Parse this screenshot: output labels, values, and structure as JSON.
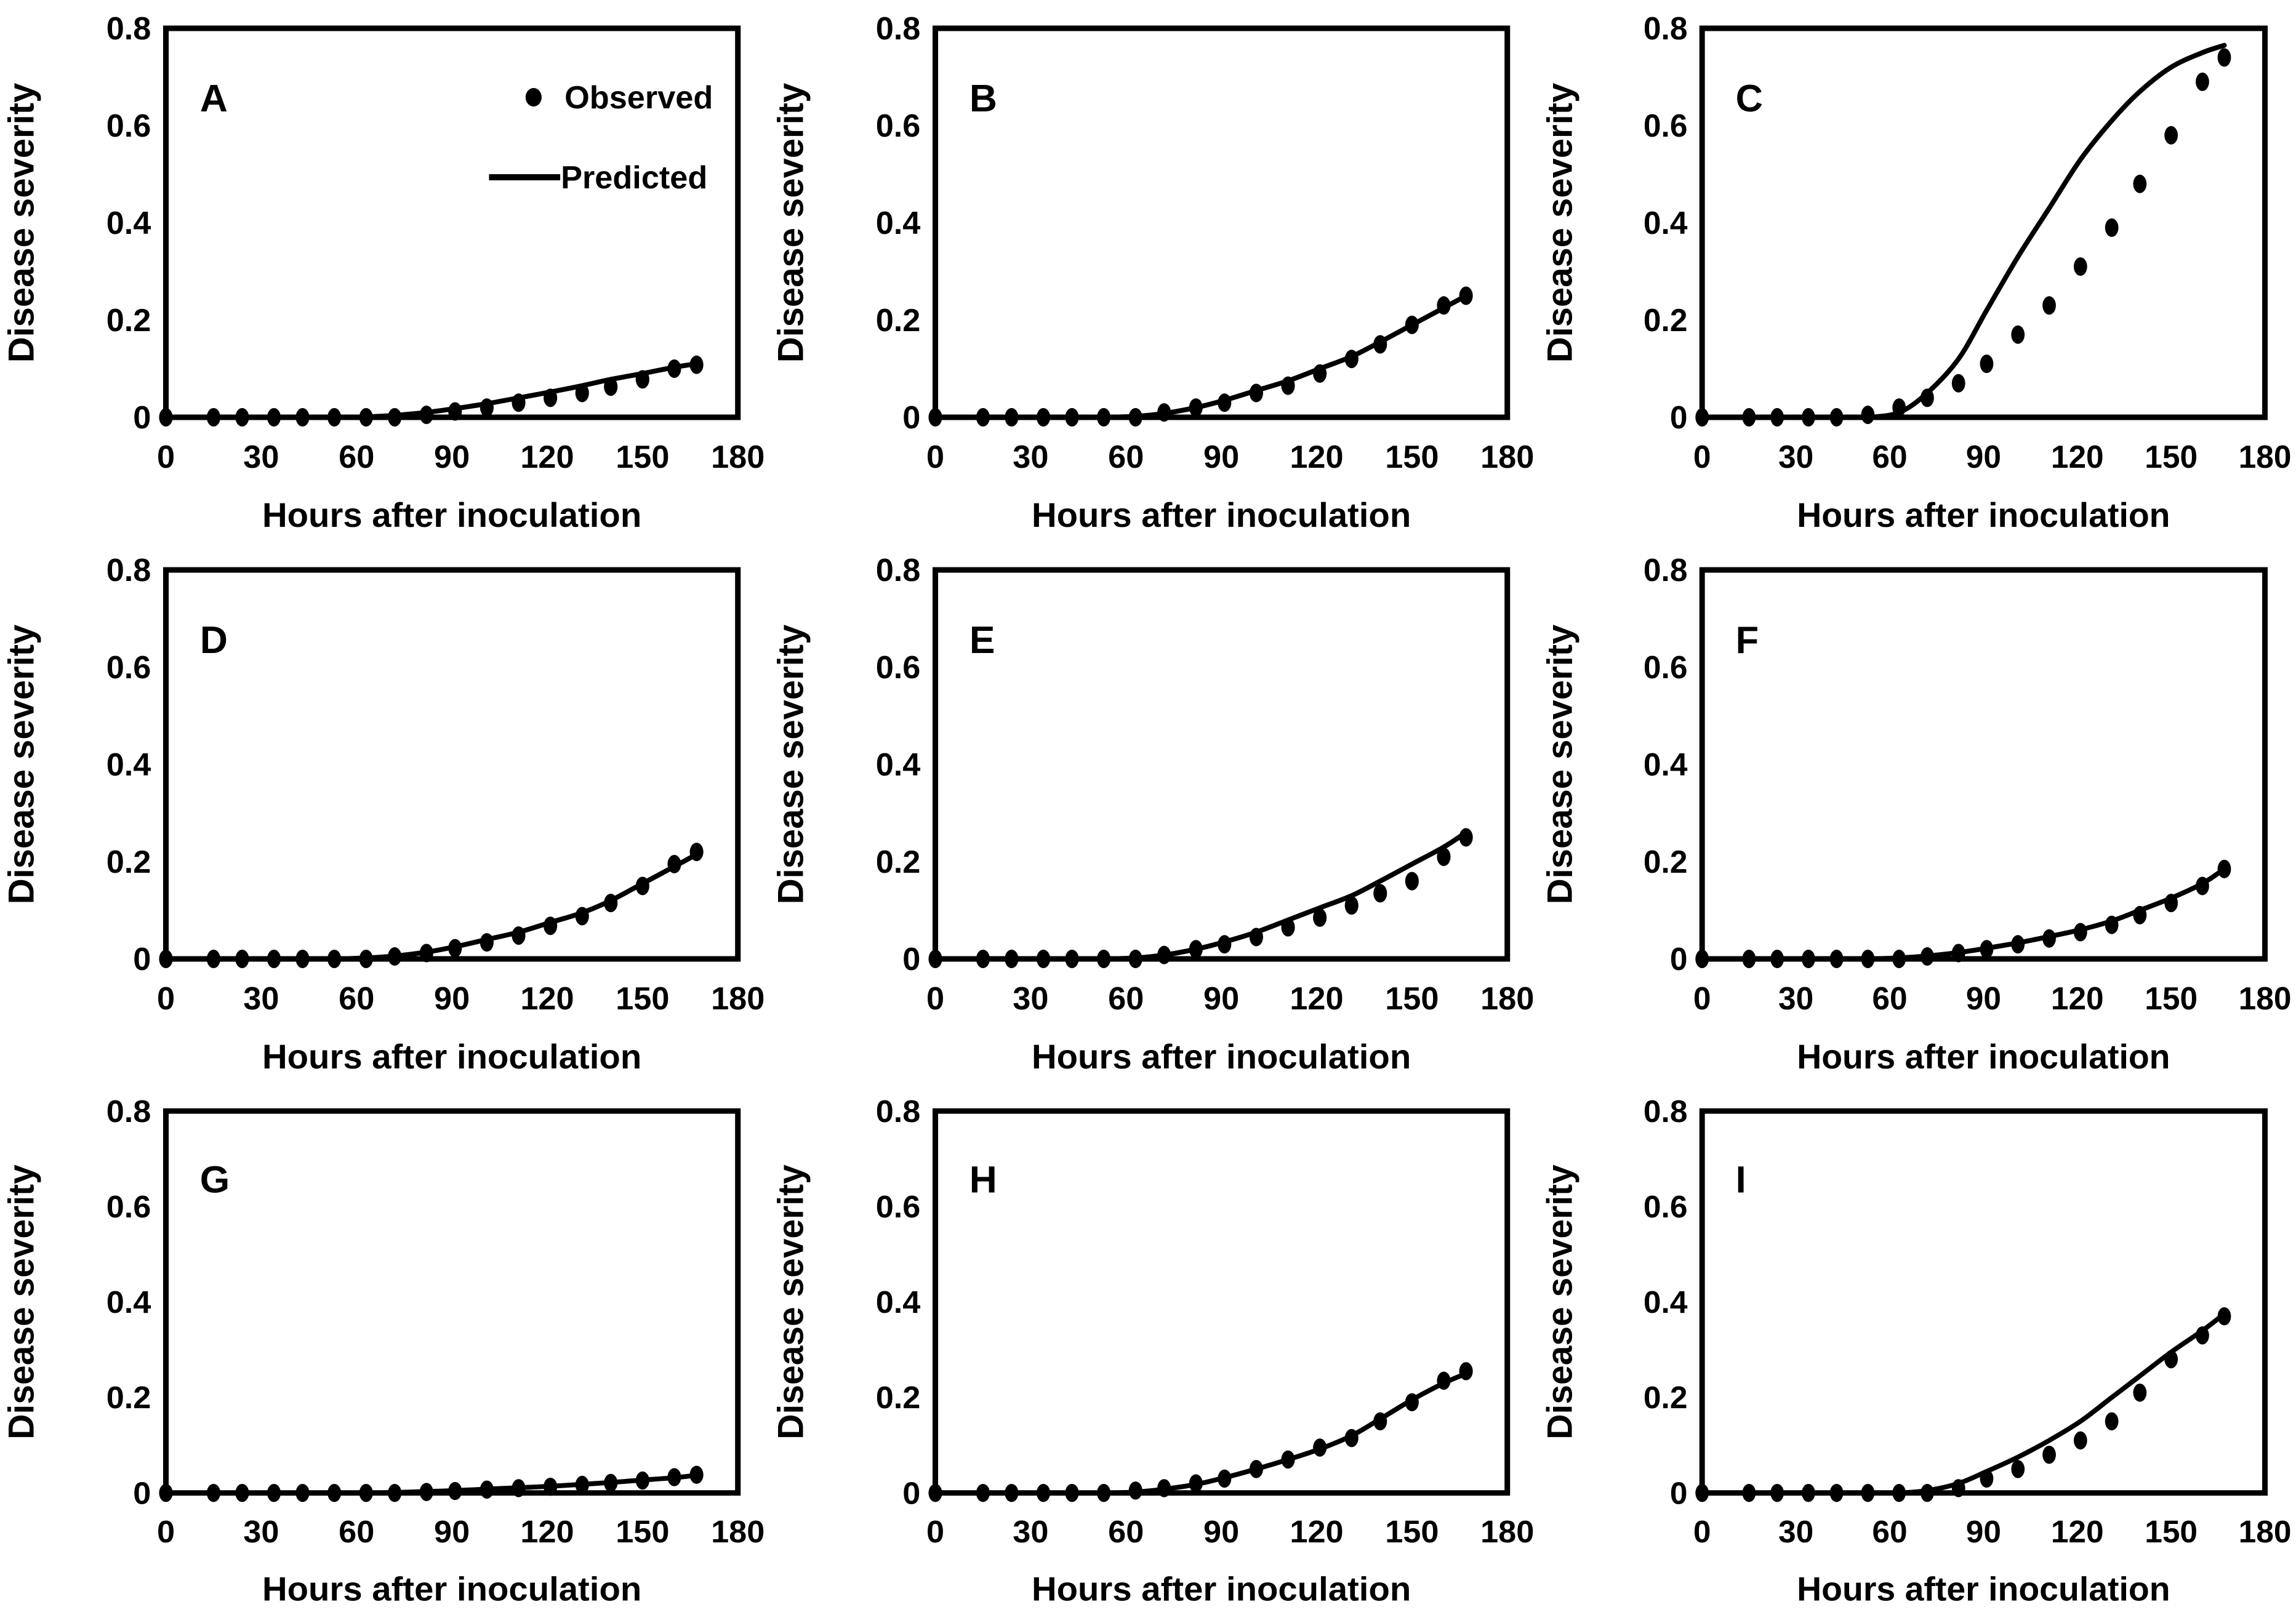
{
  "figure": {
    "description": "3x3 grid of disease progress curves, panels A-I, observed points vs predicted line",
    "ink_color": "#000000",
    "background_color": "#ffffff"
  },
  "chart_data": {
    "type": "line",
    "title": "",
    "xlabel": "Hours after inoculation",
    "ylabel": "Disease severity",
    "xlim": [
      0,
      180
    ],
    "ylim": [
      0,
      0.8
    ],
    "xticks": [
      0,
      30,
      60,
      90,
      120,
      150,
      180
    ],
    "yticks": [
      0,
      0.2,
      0.4,
      0.6,
      0.8
    ],
    "grid": false,
    "legend_position": "top-right-of-panel-A",
    "legend": {
      "observed": "Observed",
      "predicted": "Predicted"
    },
    "x": [
      0,
      15,
      24,
      34,
      43,
      53,
      63,
      72,
      82,
      91,
      101,
      111,
      121,
      131,
      140,
      150,
      160,
      167
    ],
    "panels": [
      {
        "label": "A",
        "show_legend": true,
        "series": [
          {
            "name": "Observed",
            "type": "scatter",
            "values": [
              0,
              0,
              0,
              0,
              0,
              0,
              0,
              0,
              0.005,
              0.012,
              0.02,
              0.03,
              0.04,
              0.05,
              0.063,
              0.078,
              0.1,
              0.108
            ]
          },
          {
            "name": "Predicted",
            "type": "line",
            "values": [
              0,
              0,
              0,
              0,
              0,
              0,
              0.001,
              0.004,
              0.01,
              0.018,
              0.028,
              0.04,
              0.052,
              0.065,
              0.078,
              0.09,
              0.103,
              0.11
            ]
          }
        ]
      },
      {
        "label": "B",
        "show_legend": false,
        "series": [
          {
            "name": "Observed",
            "type": "scatter",
            "values": [
              0,
              0,
              0,
              0,
              0,
              0,
              0,
              0.01,
              0.02,
              0.03,
              0.05,
              0.065,
              0.09,
              0.12,
              0.15,
              0.19,
              0.23,
              0.25
            ]
          },
          {
            "name": "Predicted",
            "type": "line",
            "values": [
              0,
              0,
              0,
              0,
              0,
              0,
              0.002,
              0.008,
              0.02,
              0.035,
              0.055,
              0.075,
              0.1,
              0.125,
              0.155,
              0.19,
              0.225,
              0.25
            ]
          }
        ]
      },
      {
        "label": "C",
        "show_legend": false,
        "series": [
          {
            "name": "Observed",
            "type": "scatter",
            "values": [
              0,
              0,
              0,
              0,
              0,
              0.005,
              0.02,
              0.04,
              0.07,
              0.11,
              0.17,
              0.23,
              0.31,
              0.39,
              0.48,
              0.58,
              0.69,
              0.74
            ]
          },
          {
            "name": "Predicted",
            "type": "line",
            "values": [
              0,
              0,
              0,
              0,
              0,
              0,
              0.01,
              0.05,
              0.12,
              0.22,
              0.33,
              0.43,
              0.53,
              0.61,
              0.67,
              0.72,
              0.75,
              0.765
            ]
          }
        ]
      },
      {
        "label": "D",
        "show_legend": false,
        "series": [
          {
            "name": "Observed",
            "type": "scatter",
            "values": [
              0,
              0,
              0,
              0,
              0,
              0,
              0,
              0.005,
              0.012,
              0.022,
              0.034,
              0.048,
              0.068,
              0.088,
              0.115,
              0.15,
              0.195,
              0.22
            ]
          },
          {
            "name": "Predicted",
            "type": "line",
            "values": [
              0,
              0,
              0,
              0,
              0,
              0,
              0.002,
              0.006,
              0.014,
              0.025,
              0.04,
              0.055,
              0.075,
              0.095,
              0.12,
              0.155,
              0.19,
              0.215
            ]
          }
        ]
      },
      {
        "label": "E",
        "show_legend": false,
        "series": [
          {
            "name": "Observed",
            "type": "scatter",
            "values": [
              0,
              0,
              0,
              0,
              0,
              0,
              0,
              0.008,
              0.02,
              0.03,
              0.045,
              0.065,
              0.085,
              0.11,
              0.135,
              0.16,
              0.21,
              0.25
            ]
          },
          {
            "name": "Predicted",
            "type": "line",
            "values": [
              0,
              0,
              0,
              0,
              0,
              0,
              0.002,
              0.008,
              0.02,
              0.035,
              0.055,
              0.08,
              0.105,
              0.13,
              0.16,
              0.195,
              0.23,
              0.26
            ]
          }
        ]
      },
      {
        "label": "F",
        "show_legend": false,
        "series": [
          {
            "name": "Observed",
            "type": "scatter",
            "values": [
              0,
              0,
              0,
              0,
              0,
              0,
              0,
              0.005,
              0.012,
              0.02,
              0.03,
              0.042,
              0.055,
              0.07,
              0.09,
              0.115,
              0.15,
              0.185
            ]
          },
          {
            "name": "Predicted",
            "type": "line",
            "values": [
              0,
              0,
              0,
              0,
              0,
              0,
              0.002,
              0.006,
              0.013,
              0.022,
              0.033,
              0.046,
              0.06,
              0.078,
              0.1,
              0.125,
              0.155,
              0.185
            ]
          }
        ]
      },
      {
        "label": "G",
        "show_legend": false,
        "series": [
          {
            "name": "Observed",
            "type": "scatter",
            "values": [
              0,
              0,
              0,
              0,
              0,
              0,
              0,
              0,
              0.002,
              0.004,
              0.007,
              0.01,
              0.013,
              0.017,
              0.021,
              0.026,
              0.033,
              0.038
            ]
          },
          {
            "name": "Predicted",
            "type": "line",
            "values": [
              0,
              0,
              0,
              0,
              0,
              0,
              0,
              0.001,
              0.003,
              0.005,
              0.008,
              0.011,
              0.014,
              0.018,
              0.022,
              0.027,
              0.032,
              0.037
            ]
          }
        ]
      },
      {
        "label": "H",
        "show_legend": false,
        "series": [
          {
            "name": "Observed",
            "type": "scatter",
            "values": [
              0,
              0,
              0,
              0,
              0,
              0,
              0.005,
              0.01,
              0.02,
              0.03,
              0.05,
              0.07,
              0.095,
              0.115,
              0.15,
              0.19,
              0.235,
              0.255
            ]
          },
          {
            "name": "Predicted",
            "type": "line",
            "values": [
              0,
              0,
              0,
              0,
              0,
              0,
              0.002,
              0.008,
              0.018,
              0.032,
              0.05,
              0.07,
              0.092,
              0.12,
              0.155,
              0.195,
              0.23,
              0.25
            ]
          }
        ]
      },
      {
        "label": "I",
        "show_legend": false,
        "series": [
          {
            "name": "Observed",
            "type": "scatter",
            "values": [
              0,
              0,
              0,
              0,
              0,
              0,
              0,
              0,
              0.01,
              0.03,
              0.05,
              0.08,
              0.11,
              0.15,
              0.21,
              0.28,
              0.33,
              0.37
            ]
          },
          {
            "name": "Predicted",
            "type": "line",
            "values": [
              0,
              0,
              0,
              0,
              0,
              0,
              0,
              0.005,
              0.02,
              0.045,
              0.075,
              0.11,
              0.15,
              0.2,
              0.245,
              0.295,
              0.34,
              0.375
            ]
          }
        ]
      }
    ]
  }
}
